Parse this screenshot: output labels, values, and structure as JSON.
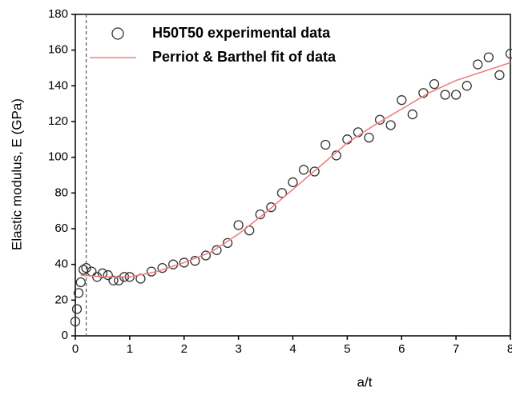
{
  "chart_data": {
    "type": "scatter-fit",
    "xlabel": "a/t",
    "ylabel": "Elastic modulus, E (GPa)",
    "xlim": [
      0,
      8
    ],
    "ylim": [
      0,
      180
    ],
    "xticks": [
      0,
      1,
      2,
      3,
      4,
      5,
      6,
      7,
      8
    ],
    "yticks": [
      0,
      20,
      40,
      60,
      80,
      100,
      120,
      140,
      160,
      180
    ],
    "reference_line_x": 0.2,
    "series": [
      {
        "name": "H50T50 experimental data",
        "color": "#333333",
        "mode": "markers",
        "x": [
          0,
          0.03,
          0.06,
          0.1,
          0.15,
          0.2,
          0.3,
          0.4,
          0.5,
          0.6,
          0.7,
          0.8,
          0.9,
          1.0,
          1.2,
          1.4,
          1.6,
          1.8,
          2.0,
          2.2,
          2.4,
          2.6,
          2.8,
          3.0,
          3.2,
          3.4,
          3.6,
          3.8,
          4.0,
          4.2,
          4.4,
          4.6,
          4.8,
          5.0,
          5.2,
          5.4,
          5.6,
          5.8,
          6.0,
          6.2,
          6.4,
          6.6,
          6.8,
          7.0,
          7.2,
          7.4,
          7.6,
          7.8,
          8.0
        ],
        "values": [
          8,
          15,
          24,
          30,
          37,
          38,
          36,
          33,
          35,
          34,
          31,
          31,
          33,
          33,
          32,
          36,
          38,
          40,
          41,
          42,
          45,
          48,
          52,
          62,
          59,
          68,
          72,
          80,
          86,
          93,
          92,
          107,
          101,
          110,
          114,
          111,
          121,
          118,
          132,
          124,
          136,
          141,
          135,
          135,
          140,
          152,
          156,
          146,
          158
        ]
      },
      {
        "name": "Perriot & Barthel fit of data",
        "color": "#f08080",
        "mode": "line",
        "x": [
          0.1,
          0.5,
          1,
          1.5,
          2,
          2.5,
          3,
          3.5,
          4,
          4.5,
          5,
          5.5,
          6,
          6.5,
          7,
          7.5,
          8
        ],
        "values": [
          34,
          33,
          33,
          36,
          41,
          47,
          57,
          69,
          82,
          95,
          108,
          118,
          127,
          136,
          143,
          148,
          153
        ]
      }
    ]
  }
}
